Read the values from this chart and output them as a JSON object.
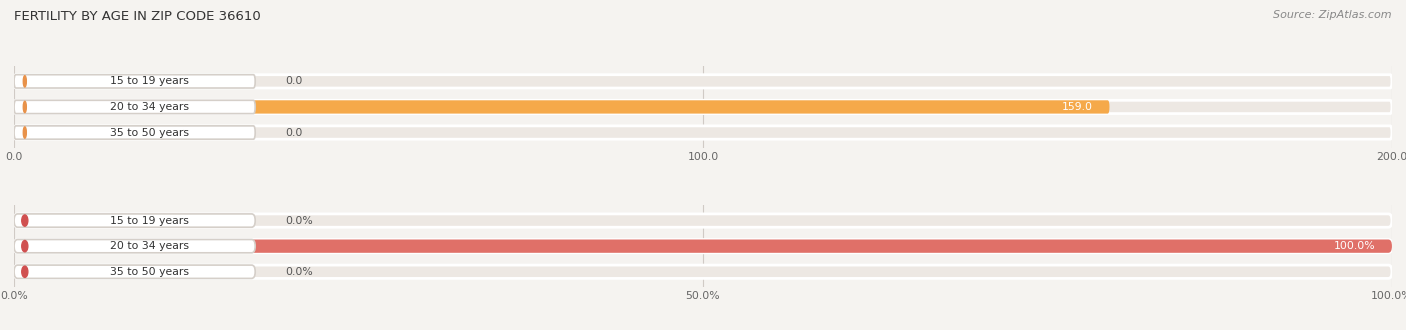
{
  "title": "FERTILITY BY AGE IN ZIP CODE 36610",
  "source": "Source: ZipAtlas.com",
  "chart1": {
    "categories": [
      "15 to 19 years",
      "20 to 34 years",
      "35 to 50 years"
    ],
    "values": [
      0.0,
      159.0,
      0.0
    ],
    "xlim": [
      0,
      200
    ],
    "xticks": [
      0.0,
      100.0,
      200.0
    ],
    "xtick_labels": [
      "0.0",
      "100.0",
      "200.0"
    ],
    "bar_color": "#F5A94A",
    "bar_bg_color": "#EDE8E3",
    "circle_color": "#E8924A",
    "value_color": "#555555",
    "value_inside_color": "#FFFFFF"
  },
  "chart2": {
    "categories": [
      "15 to 19 years",
      "20 to 34 years",
      "35 to 50 years"
    ],
    "values": [
      0.0,
      100.0,
      0.0
    ],
    "xlim": [
      0,
      100
    ],
    "xticks": [
      0.0,
      50.0,
      100.0
    ],
    "xtick_labels": [
      "0.0%",
      "50.0%",
      "100.0%"
    ],
    "bar_color": "#E07068",
    "bar_bg_color": "#EDE8E3",
    "circle_color": "#D05050",
    "value_color": "#555555",
    "value_inside_color": "#FFFFFF"
  },
  "bg_color": "#F5F3F0",
  "grid_color": "#D0CAC5",
  "title_color": "#333333",
  "label_text_color": "#333333",
  "source_color": "#888888",
  "fig_bg": "#F5F3F0"
}
